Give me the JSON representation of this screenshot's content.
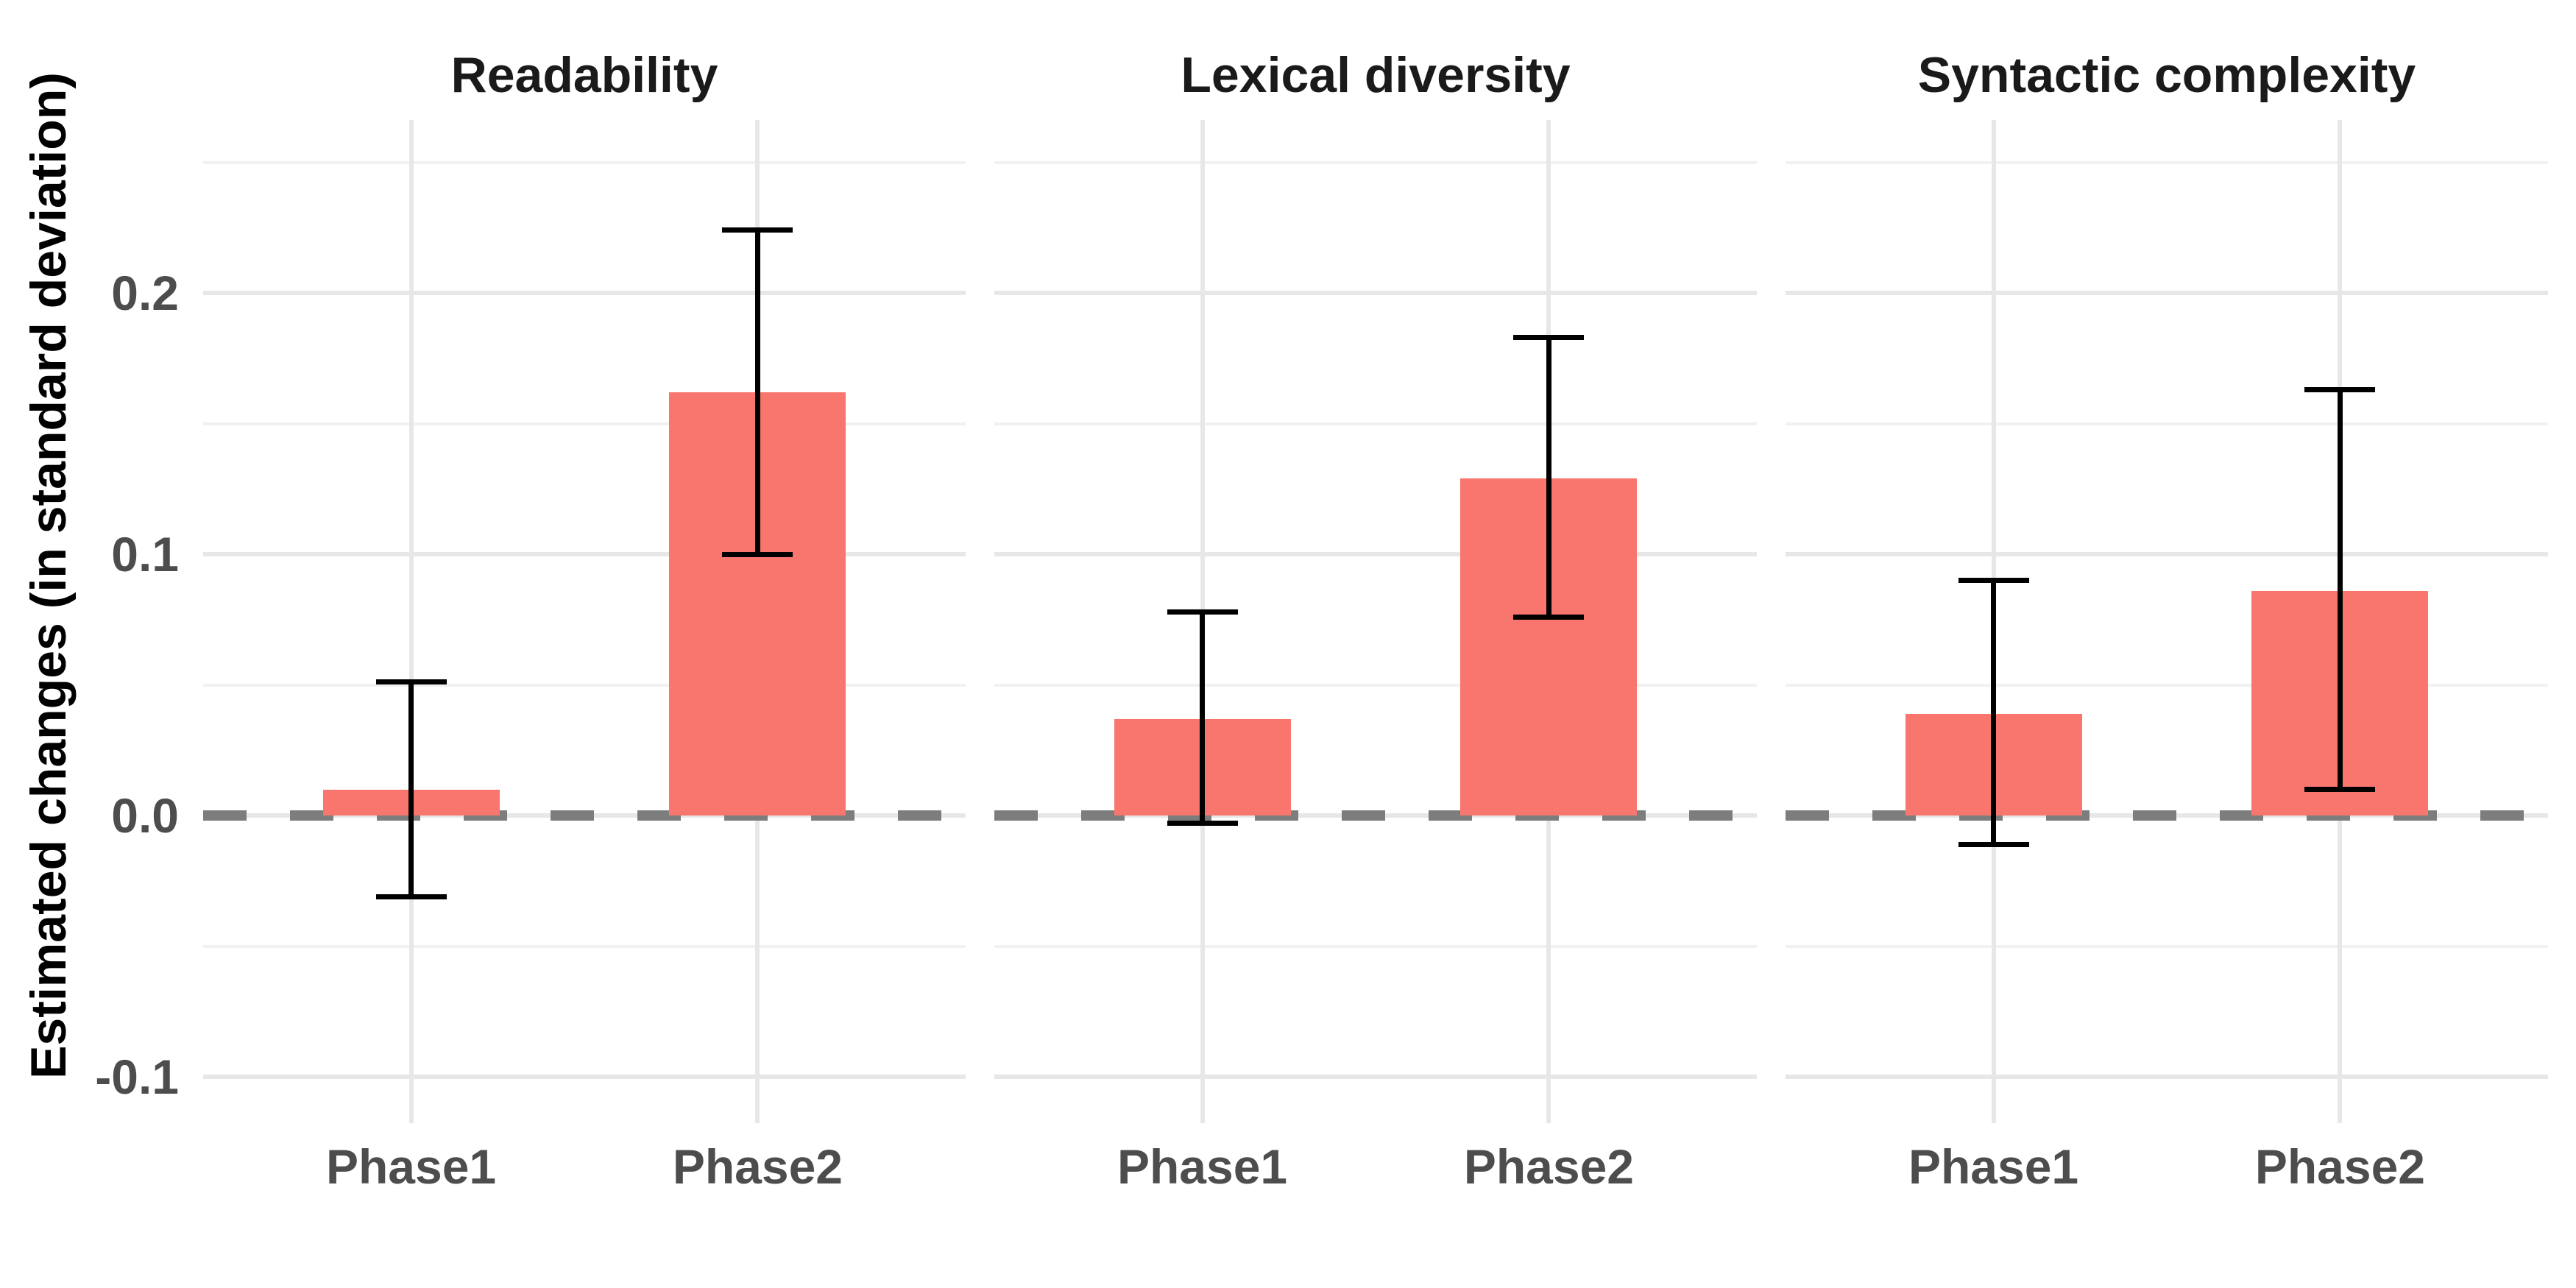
{
  "chart_data": {
    "type": "bar",
    "title": "",
    "ylabel": "Estimated changes (in standard deviation)",
    "xlabel": "",
    "categories": [
      "Phase1",
      "Phase2"
    ],
    "y_tick_labels": [
      "0.2",
      "0.1",
      "0.0",
      "-0.1"
    ],
    "y_ticks": [
      0.2,
      0.1,
      0.0,
      -0.1
    ],
    "y_minor_ticks": [
      0.25,
      0.15,
      0.05,
      -0.05
    ],
    "ylim": [
      -0.117,
      0.267
    ],
    "grid": true,
    "legend": "none",
    "error_bars": true,
    "reference_line": {
      "y": 0.0,
      "style": "dashed"
    },
    "facets": [
      {
        "title": "Readability",
        "values": [
          0.01,
          0.162
        ],
        "ci_low": [
          -0.031,
          0.1
        ],
        "ci_high": [
          0.051,
          0.224
        ]
      },
      {
        "title": "Lexical diversity",
        "values": [
          0.037,
          0.129
        ],
        "ci_low": [
          -0.003,
          0.076
        ],
        "ci_high": [
          0.078,
          0.183
        ]
      },
      {
        "title": "Syntactic complexity",
        "values": [
          0.039,
          0.086
        ],
        "ci_low": [
          -0.011,
          0.01
        ],
        "ci_high": [
          0.09,
          0.163
        ]
      }
    ],
    "colors": {
      "bar_fill": "#F8766D",
      "error_bar": "#000000",
      "reference_line": "#7D7D7D",
      "grid_major": "#E7E7E7",
      "grid_minor": "#F1F1F1",
      "axis_text": "#4D4D4D",
      "title_text": "#1A1A1A"
    }
  }
}
